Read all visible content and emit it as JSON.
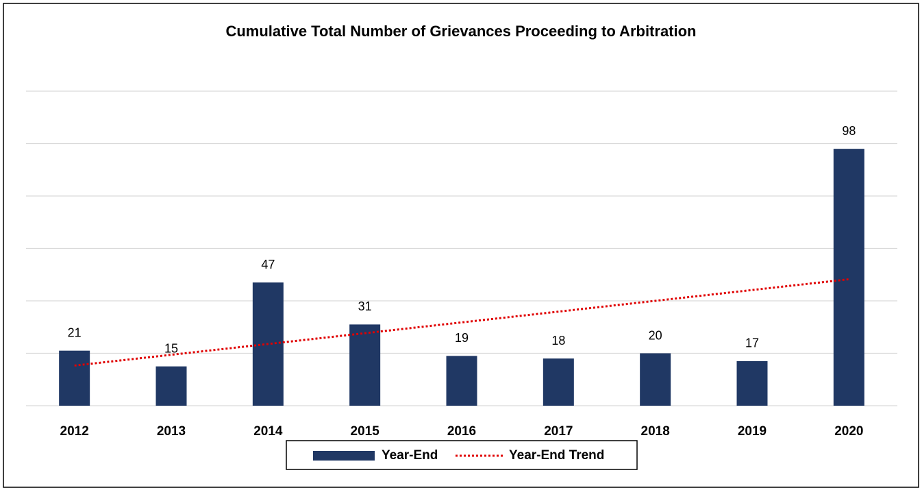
{
  "chart_data": {
    "type": "bar",
    "title": "Cumulative Total Number of Grievances Proceeding to Arbitration",
    "categories": [
      "2012",
      "2013",
      "2014",
      "2015",
      "2016",
      "2017",
      "2018",
      "2019",
      "2020"
    ],
    "series": [
      {
        "name": "Year-End",
        "type": "bar",
        "color": "#203864",
        "values": [
          21,
          15,
          47,
          31,
          19,
          18,
          20,
          17,
          98
        ]
      },
      {
        "name": "Year-End Trend",
        "type": "line",
        "style": "dotted",
        "color": "#e00000",
        "values": [
          15.31,
          19.43,
          23.54,
          27.66,
          31.78,
          35.89,
          40.01,
          44.13,
          48.24
        ]
      }
    ],
    "data_labels_series": 0,
    "ylim": [
      0,
      120
    ],
    "yticks": [
      0,
      20,
      40,
      60,
      80,
      100,
      120
    ],
    "grid": true,
    "legend": "bottom"
  }
}
